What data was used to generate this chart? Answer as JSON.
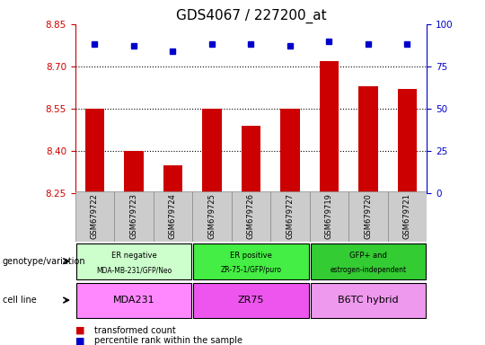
{
  "title": "GDS4067 / 227200_at",
  "samples": [
    "GSM679722",
    "GSM679723",
    "GSM679724",
    "GSM679725",
    "GSM679726",
    "GSM679727",
    "GSM679719",
    "GSM679720",
    "GSM679721"
  ],
  "bar_values": [
    8.55,
    8.4,
    8.35,
    8.55,
    8.49,
    8.55,
    8.72,
    8.63,
    8.62
  ],
  "percentile_values": [
    88,
    87,
    84,
    88,
    88,
    87,
    90,
    88,
    88
  ],
  "ylim": [
    8.25,
    8.85
  ],
  "ylim_right": [
    0,
    100
  ],
  "yticks_left": [
    8.25,
    8.4,
    8.55,
    8.7,
    8.85
  ],
  "yticks_right": [
    0,
    25,
    50,
    75,
    100
  ],
  "bar_color": "#cc0000",
  "dot_color": "#0000cc",
  "grid_color": "#000000",
  "title_fontsize": 11,
  "groups": [
    {
      "label_top": "ER negative",
      "label_bot": "MDA-MB-231/GFP/Neo",
      "cell_line": "MDA231",
      "start": 0,
      "end": 3,
      "geno_color": "#ccffcc",
      "cell_color": "#ff88ff"
    },
    {
      "label_top": "ER positive",
      "label_bot": "ZR-75-1/GFP/puro",
      "cell_line": "ZR75",
      "start": 3,
      "end": 6,
      "geno_color": "#44ee44",
      "cell_color": "#ee55ee"
    },
    {
      "label_top": "GFP+ and",
      "label_bot": "estrogen-independent",
      "cell_line": "B6TC hybrid",
      "start": 6,
      "end": 9,
      "geno_color": "#33cc33",
      "cell_color": "#ee99ee"
    }
  ],
  "left_axis_color": "#cc0000",
  "right_axis_color": "#0000cc",
  "sample_bg_color": "#cccccc",
  "sample_border_color": "#888888"
}
